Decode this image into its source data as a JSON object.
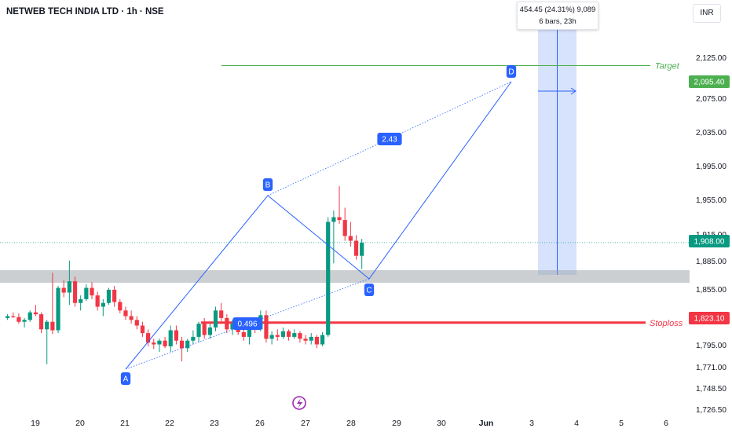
{
  "header": {
    "title": "NETWEB TECH INDIA LTD · 1h · NSE",
    "currency": "INR"
  },
  "measure_tooltip": {
    "line1": "454.45 (24.31%) 9,089",
    "line2": "6 bars, 23h"
  },
  "chart_data": {
    "type": "candlestick",
    "title": "NETWEB TECH INDIA LTD · 1h · NSE",
    "y_axis_ticks": [
      "2,125.00",
      "2,075.00",
      "2,035.00",
      "1,995.00",
      "1,955.00",
      "1,915.00",
      "1,885.00",
      "1,855.00",
      "1,795.00",
      "1,771.00",
      "1,748.50",
      "1,726.50"
    ],
    "x_axis_ticks": [
      "19",
      "20",
      "21",
      "22",
      "23",
      "26",
      "27",
      "28",
      "29",
      "30",
      "Jun",
      "3",
      "4",
      "5",
      "6"
    ],
    "ylim": [
      1722,
      2156
    ],
    "price_labels": {
      "target": "2,095.40",
      "current": "1,908.00",
      "stoploss": "1,823.10"
    },
    "lines": {
      "target_label": "Target",
      "stoploss_label": "Stoploss"
    },
    "pattern": {
      "points": [
        "A",
        "B",
        "C",
        "D"
      ],
      "ratio_bc": "0.496",
      "ratio_cd": "2.43"
    },
    "candles_ohlc": [
      [
        1828,
        1832,
        1826,
        1830
      ],
      [
        1830,
        1834,
        1828,
        1829
      ],
      [
        1829,
        1833,
        1822,
        1824
      ],
      [
        1824,
        1828,
        1818,
        1826
      ],
      [
        1826,
        1836,
        1824,
        1834
      ],
      [
        1834,
        1842,
        1830,
        1832
      ],
      [
        1832,
        1834,
        1812,
        1816
      ],
      [
        1816,
        1826,
        1779,
        1824
      ],
      [
        1824,
        1876,
        1811,
        1815
      ],
      [
        1815,
        1862,
        1812,
        1860
      ],
      [
        1860,
        1868,
        1850,
        1855
      ],
      [
        1855,
        1889,
        1842,
        1867
      ],
      [
        1867,
        1872,
        1840,
        1844
      ],
      [
        1844,
        1852,
        1836,
        1848
      ],
      [
        1848,
        1864,
        1846,
        1860
      ],
      [
        1860,
        1866,
        1848,
        1852
      ],
      [
        1852,
        1856,
        1836,
        1840
      ],
      [
        1840,
        1848,
        1830,
        1844
      ],
      [
        1844,
        1860,
        1842,
        1858
      ],
      [
        1858,
        1862,
        1840,
        1845
      ],
      [
        1845,
        1848,
        1833,
        1836
      ],
      [
        1836,
        1840,
        1826,
        1830
      ],
      [
        1830,
        1836,
        1822,
        1826
      ],
      [
        1826,
        1830,
        1816,
        1820
      ],
      [
        1820,
        1824,
        1808,
        1812
      ],
      [
        1812,
        1816,
        1798,
        1802
      ],
      [
        1802,
        1806,
        1795,
        1800
      ],
      [
        1800,
        1806,
        1792,
        1804
      ],
      [
        1804,
        1808,
        1796,
        1798
      ],
      [
        1798,
        1820,
        1792,
        1815
      ],
      [
        1815,
        1820,
        1800,
        1804
      ],
      [
        1804,
        1808,
        1782,
        1796
      ],
      [
        1796,
        1806,
        1792,
        1804
      ],
      [
        1804,
        1815,
        1800,
        1808
      ],
      [
        1808,
        1824,
        1802,
        1822
      ],
      [
        1822,
        1828,
        1806,
        1810
      ],
      [
        1810,
        1822,
        1806,
        1818
      ],
      [
        1818,
        1840,
        1814,
        1836
      ],
      [
        1836,
        1844,
        1824,
        1828
      ],
      [
        1828,
        1832,
        1812,
        1816
      ],
      [
        1816,
        1826,
        1810,
        1822
      ],
      [
        1822,
        1826,
        1810,
        1813
      ],
      [
        1813,
        1818,
        1804,
        1808
      ],
      [
        1808,
        1826,
        1800,
        1822
      ],
      [
        1822,
        1826,
        1812,
        1816
      ],
      [
        1816,
        1836,
        1814,
        1831
      ],
      [
        1831,
        1836,
        1802,
        1806
      ],
      [
        1806,
        1814,
        1800,
        1810
      ],
      [
        1810,
        1816,
        1804,
        1808
      ],
      [
        1808,
        1818,
        1806,
        1814
      ],
      [
        1814,
        1816,
        1804,
        1808
      ],
      [
        1808,
        1816,
        1806,
        1812
      ],
      [
        1812,
        1814,
        1802,
        1806
      ],
      [
        1806,
        1810,
        1800,
        1804
      ],
      [
        1804,
        1812,
        1800,
        1808
      ],
      [
        1808,
        1810,
        1796,
        1800
      ],
      [
        1800,
        1813,
        1798,
        1810
      ],
      [
        1810,
        1935,
        1808,
        1930
      ],
      [
        1930,
        1942,
        1886,
        1935
      ],
      [
        1935,
        1968,
        1928,
        1932
      ],
      [
        1932,
        1945,
        1910,
        1915
      ],
      [
        1915,
        1930,
        1904,
        1910
      ],
      [
        1910,
        1916,
        1890,
        1894
      ],
      [
        1894,
        1912,
        1880,
        1908
      ]
    ]
  }
}
